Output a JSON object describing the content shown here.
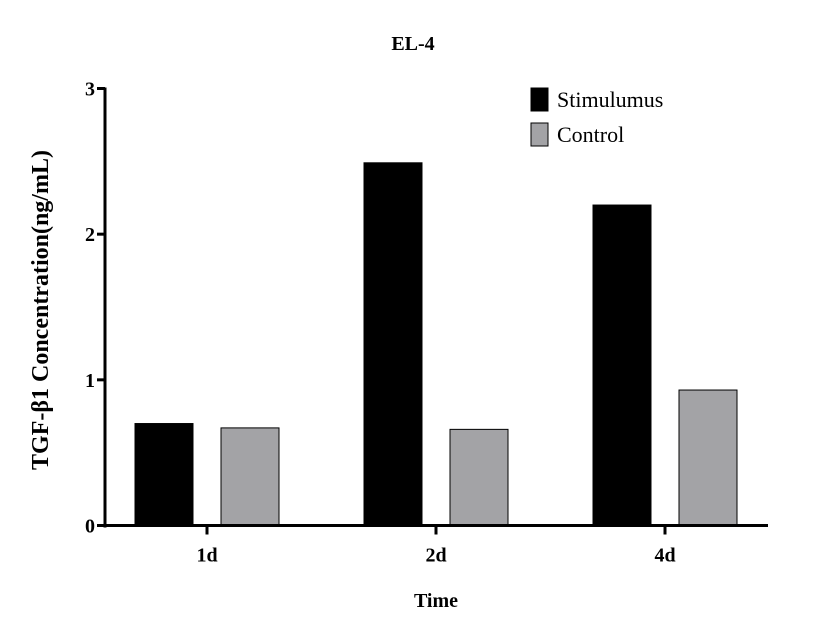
{
  "chart_data": {
    "type": "bar",
    "title": "EL-4",
    "xlabel": "Time",
    "ylabel": "TGF-β1 Concentration(ng/mL)",
    "categories": [
      "1d",
      "2d",
      "4d"
    ],
    "series": [
      {
        "name": "Stimulumus",
        "values": [
          0.7,
          2.49,
          2.2
        ],
        "color": "#000000"
      },
      {
        "name": "Control",
        "values": [
          0.67,
          0.66,
          0.93
        ],
        "color": "#a3a3a6"
      }
    ],
    "ylim": [
      0,
      3
    ],
    "yticks": [
      "0",
      "1",
      "2",
      "3"
    ],
    "grid": false,
    "legend": "top-right"
  }
}
